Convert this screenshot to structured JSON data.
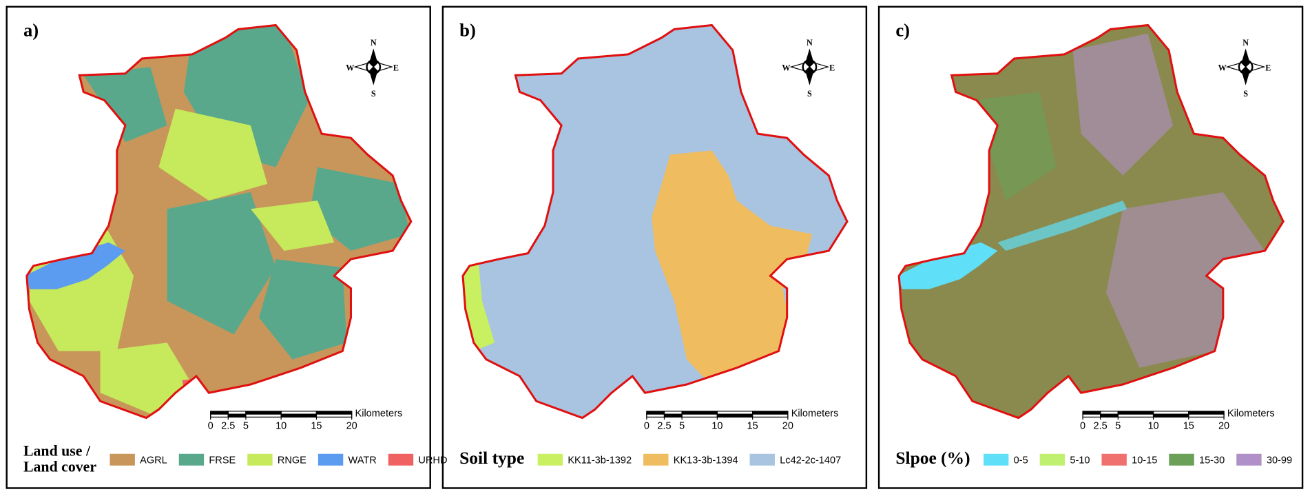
{
  "panels": [
    {
      "label": "a)",
      "legend_title": [
        "Land use /",
        "Land cover"
      ],
      "legend": [
        {
          "name": "AGRL",
          "color": "#c8965a"
        },
        {
          "name": "FRSE",
          "color": "#5aa88c"
        },
        {
          "name": "RNGE",
          "color": "#c6ea5c"
        },
        {
          "name": "WATR",
          "color": "#5b9bf0"
        },
        {
          "name": "URHD",
          "color": "#f06262"
        }
      ],
      "scale_unit": "Kilometers",
      "scale_ticks": [
        0,
        2.5,
        5,
        10,
        15,
        20
      ],
      "compass": [
        "N",
        "E",
        "S",
        "W"
      ]
    },
    {
      "label": "b)",
      "legend_title": [
        "Soil type"
      ],
      "legend": [
        {
          "name": "KK11-3b-1392",
          "color": "#c8f060"
        },
        {
          "name": "KK13-3b-1394",
          "color": "#f0bc60"
        },
        {
          "name": "Lc42-2c-1407",
          "color": "#a8c4e0"
        }
      ],
      "scale_unit": "Kilometers",
      "scale_ticks": [
        0,
        2.5,
        5,
        10,
        15,
        20
      ],
      "compass": [
        "N",
        "E",
        "S",
        "W"
      ]
    },
    {
      "label": "c)",
      "legend_title": [
        "Slpoe (%)"
      ],
      "legend": [
        {
          "name": "0-5",
          "color": "#60e0f8"
        },
        {
          "name": "5-10",
          "color": "#c0f070"
        },
        {
          "name": "10-15",
          "color": "#f07070"
        },
        {
          "name": "15-30",
          "color": "#6aa058"
        },
        {
          "name": "30-99",
          "color": "#b090c8"
        }
      ],
      "scale_unit": "Kilometers",
      "scale_ticks": [
        0,
        2.5,
        5,
        10,
        15,
        20
      ],
      "compass": [
        "N",
        "E",
        "S",
        "W"
      ]
    }
  ]
}
